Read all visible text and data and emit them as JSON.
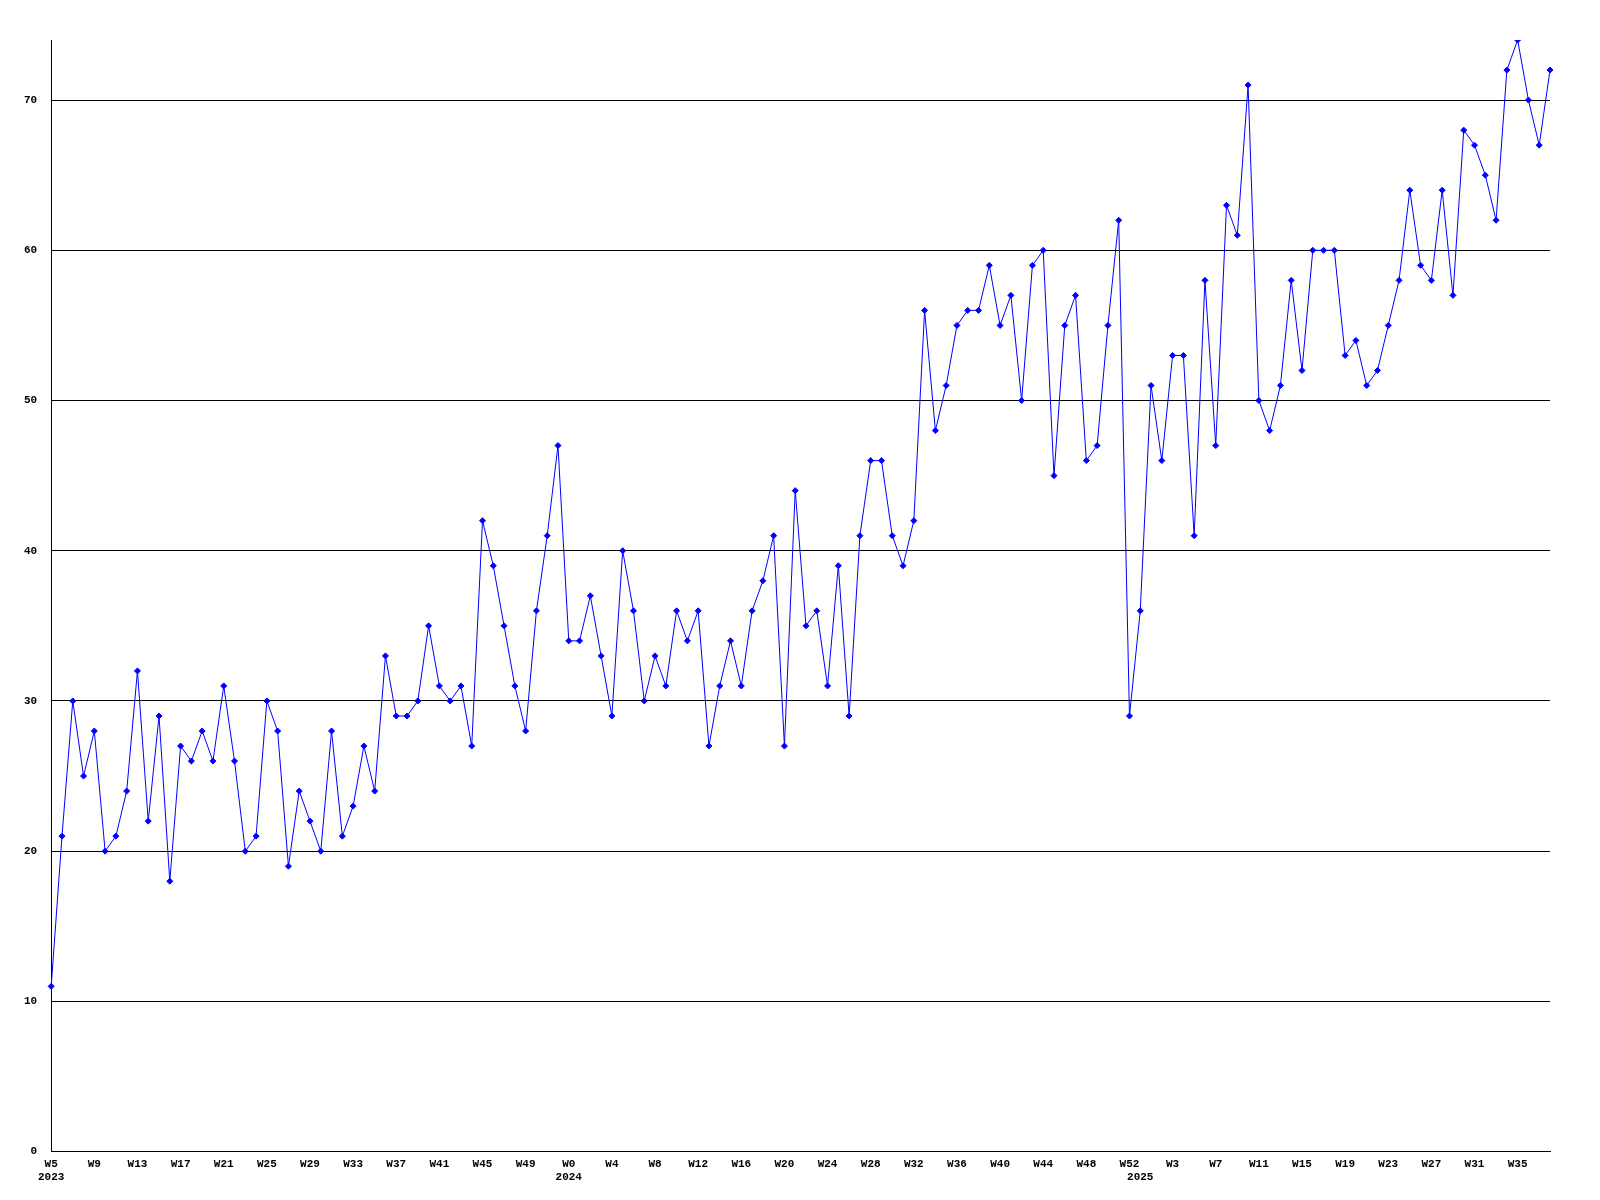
{
  "chart_data": {
    "type": "line",
    "categories": [
      "W5\n2023",
      null,
      null,
      null,
      "W9",
      null,
      null,
      null,
      "W13",
      null,
      null,
      null,
      "W17",
      null,
      null,
      null,
      "W21",
      null,
      null,
      null,
      "W25",
      null,
      null,
      null,
      "W29",
      null,
      null,
      null,
      "W33",
      null,
      null,
      null,
      "W37",
      null,
      null,
      null,
      "W41",
      null,
      null,
      null,
      "W45",
      null,
      null,
      null,
      "W49",
      null,
      null,
      null,
      "W0\n2024",
      null,
      null,
      null,
      "W4",
      null,
      null,
      null,
      "W8",
      null,
      null,
      null,
      "W12",
      null,
      null,
      null,
      "W16",
      null,
      null,
      null,
      "W20",
      null,
      null,
      null,
      "W24",
      null,
      null,
      null,
      "W28",
      null,
      null,
      null,
      "W32",
      null,
      null,
      null,
      "W36",
      null,
      null,
      null,
      "W40",
      null,
      null,
      null,
      "W44",
      null,
      null,
      null,
      "W48",
      null,
      null,
      null,
      "W52",
      "\n2025",
      null,
      null,
      "W3",
      null,
      null,
      null,
      "W7",
      null,
      null,
      null,
      "W11",
      null,
      null,
      null,
      "W15",
      null,
      null,
      null,
      "W19",
      null,
      null,
      null,
      "W23",
      null,
      null,
      null,
      "W27",
      null,
      null,
      null,
      "W31",
      null,
      null,
      null,
      "W35",
      null,
      null,
      null
    ],
    "series": [
      {
        "color": "#0000ff",
        "values": [
          11,
          21,
          30,
          25,
          28,
          20,
          21,
          24,
          32,
          22,
          29,
          18,
          27,
          26,
          28,
          26,
          31,
          26,
          20,
          21,
          30,
          28,
          19,
          24,
          22,
          20,
          28,
          21,
          23,
          27,
          24,
          33,
          29,
          29,
          30,
          35,
          31,
          30,
          31,
          27,
          42,
          39,
          35,
          31,
          28,
          36,
          41,
          47,
          34,
          34,
          37,
          33,
          29,
          40,
          36,
          30,
          33,
          31,
          36,
          34,
          36,
          27,
          31,
          34,
          31,
          36,
          38,
          41,
          27,
          44,
          35,
          36,
          31,
          39,
          29,
          41,
          46,
          46,
          41,
          39,
          42,
          56,
          48,
          51,
          55,
          56,
          56,
          59,
          55,
          57,
          50,
          59,
          60,
          45,
          55,
          57,
          46,
          47,
          55,
          62,
          29,
          36,
          51,
          46,
          53,
          53,
          41,
          58,
          47,
          63,
          61,
          71,
          50,
          48,
          51,
          58,
          52,
          60,
          60,
          60,
          53,
          54,
          51,
          52,
          55,
          58,
          64,
          59,
          58,
          64,
          57,
          68,
          67,
          65,
          62,
          72,
          74,
          70,
          67,
          72
        ]
      }
    ],
    "ylim": [
      0,
      74
    ],
    "yticks": [
      0,
      10,
      20,
      30,
      40,
      50,
      60,
      70
    ],
    "grid": "y",
    "legend": false,
    "marker": "diamond",
    "line_style": "solid"
  }
}
